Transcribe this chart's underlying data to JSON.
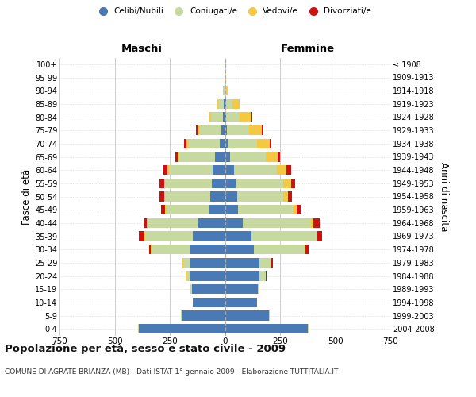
{
  "age_groups": [
    "0-4",
    "5-9",
    "10-14",
    "15-19",
    "20-24",
    "25-29",
    "30-34",
    "35-39",
    "40-44",
    "45-49",
    "50-54",
    "55-59",
    "60-64",
    "65-69",
    "70-74",
    "75-79",
    "80-84",
    "85-89",
    "90-94",
    "95-99",
    "100+"
  ],
  "birth_years": [
    "2004-2008",
    "1999-2003",
    "1994-1998",
    "1989-1993",
    "1984-1988",
    "1979-1983",
    "1974-1978",
    "1969-1973",
    "1964-1968",
    "1959-1963",
    "1954-1958",
    "1949-1953",
    "1944-1948",
    "1939-1943",
    "1934-1938",
    "1929-1933",
    "1924-1928",
    "1919-1923",
    "1914-1918",
    "1909-1913",
    "≤ 1908"
  ],
  "maschi": {
    "celibi": [
      390,
      195,
      145,
      150,
      155,
      155,
      155,
      145,
      120,
      70,
      65,
      60,
      55,
      45,
      25,
      15,
      8,
      5,
      2,
      1,
      0
    ],
    "coniugati": [
      5,
      5,
      2,
      5,
      20,
      35,
      175,
      215,
      230,
      195,
      205,
      210,
      200,
      165,
      140,
      100,
      55,
      25,
      5,
      2,
      0
    ],
    "vedovi": [
      0,
      0,
      0,
      0,
      2,
      2,
      5,
      5,
      5,
      5,
      5,
      5,
      5,
      5,
      10,
      10,
      10,
      5,
      2,
      0,
      0
    ],
    "divorziati": [
      0,
      0,
      0,
      0,
      2,
      5,
      10,
      25,
      15,
      20,
      20,
      20,
      20,
      10,
      10,
      5,
      2,
      2,
      0,
      0,
      0
    ]
  },
  "femmine": {
    "nubili": [
      375,
      200,
      145,
      150,
      155,
      155,
      130,
      120,
      80,
      60,
      55,
      50,
      40,
      25,
      15,
      8,
      5,
      5,
      2,
      1,
      0
    ],
    "coniugate": [
      5,
      5,
      2,
      5,
      30,
      55,
      230,
      295,
      310,
      250,
      210,
      215,
      195,
      160,
      130,
      100,
      60,
      30,
      8,
      2,
      0
    ],
    "vedove": [
      0,
      0,
      0,
      0,
      2,
      2,
      5,
      5,
      10,
      15,
      20,
      35,
      45,
      55,
      60,
      60,
      55,
      30,
      5,
      2,
      0
    ],
    "divorziate": [
      0,
      0,
      0,
      0,
      2,
      5,
      15,
      20,
      30,
      20,
      20,
      20,
      20,
      10,
      5,
      5,
      5,
      2,
      0,
      0,
      0
    ]
  },
  "colors": {
    "celibi": "#4a7ab5",
    "coniugati": "#c8d9a0",
    "vedovi": "#f5c842",
    "divorziati": "#cc1111"
  },
  "xlim": 750,
  "title": "Popolazione per età, sesso e stato civile - 2009",
  "subtitle": "COMUNE DI AGRATE BRIANZA (MB) - Dati ISTAT 1° gennaio 2009 - Elaborazione TUTTITALIA.IT",
  "ylabel_left": "Fasce di età",
  "ylabel_right": "Anni di nascita",
  "header_left": "Maschi",
  "header_right": "Femmine",
  "legend_labels": [
    "Celibi/Nubili",
    "Coniugati/e",
    "Vedovi/e",
    "Divorziati/e"
  ],
  "bg_color": "#FFFFFF",
  "grid_color": "#CCCCCC",
  "bar_height": 0.75
}
